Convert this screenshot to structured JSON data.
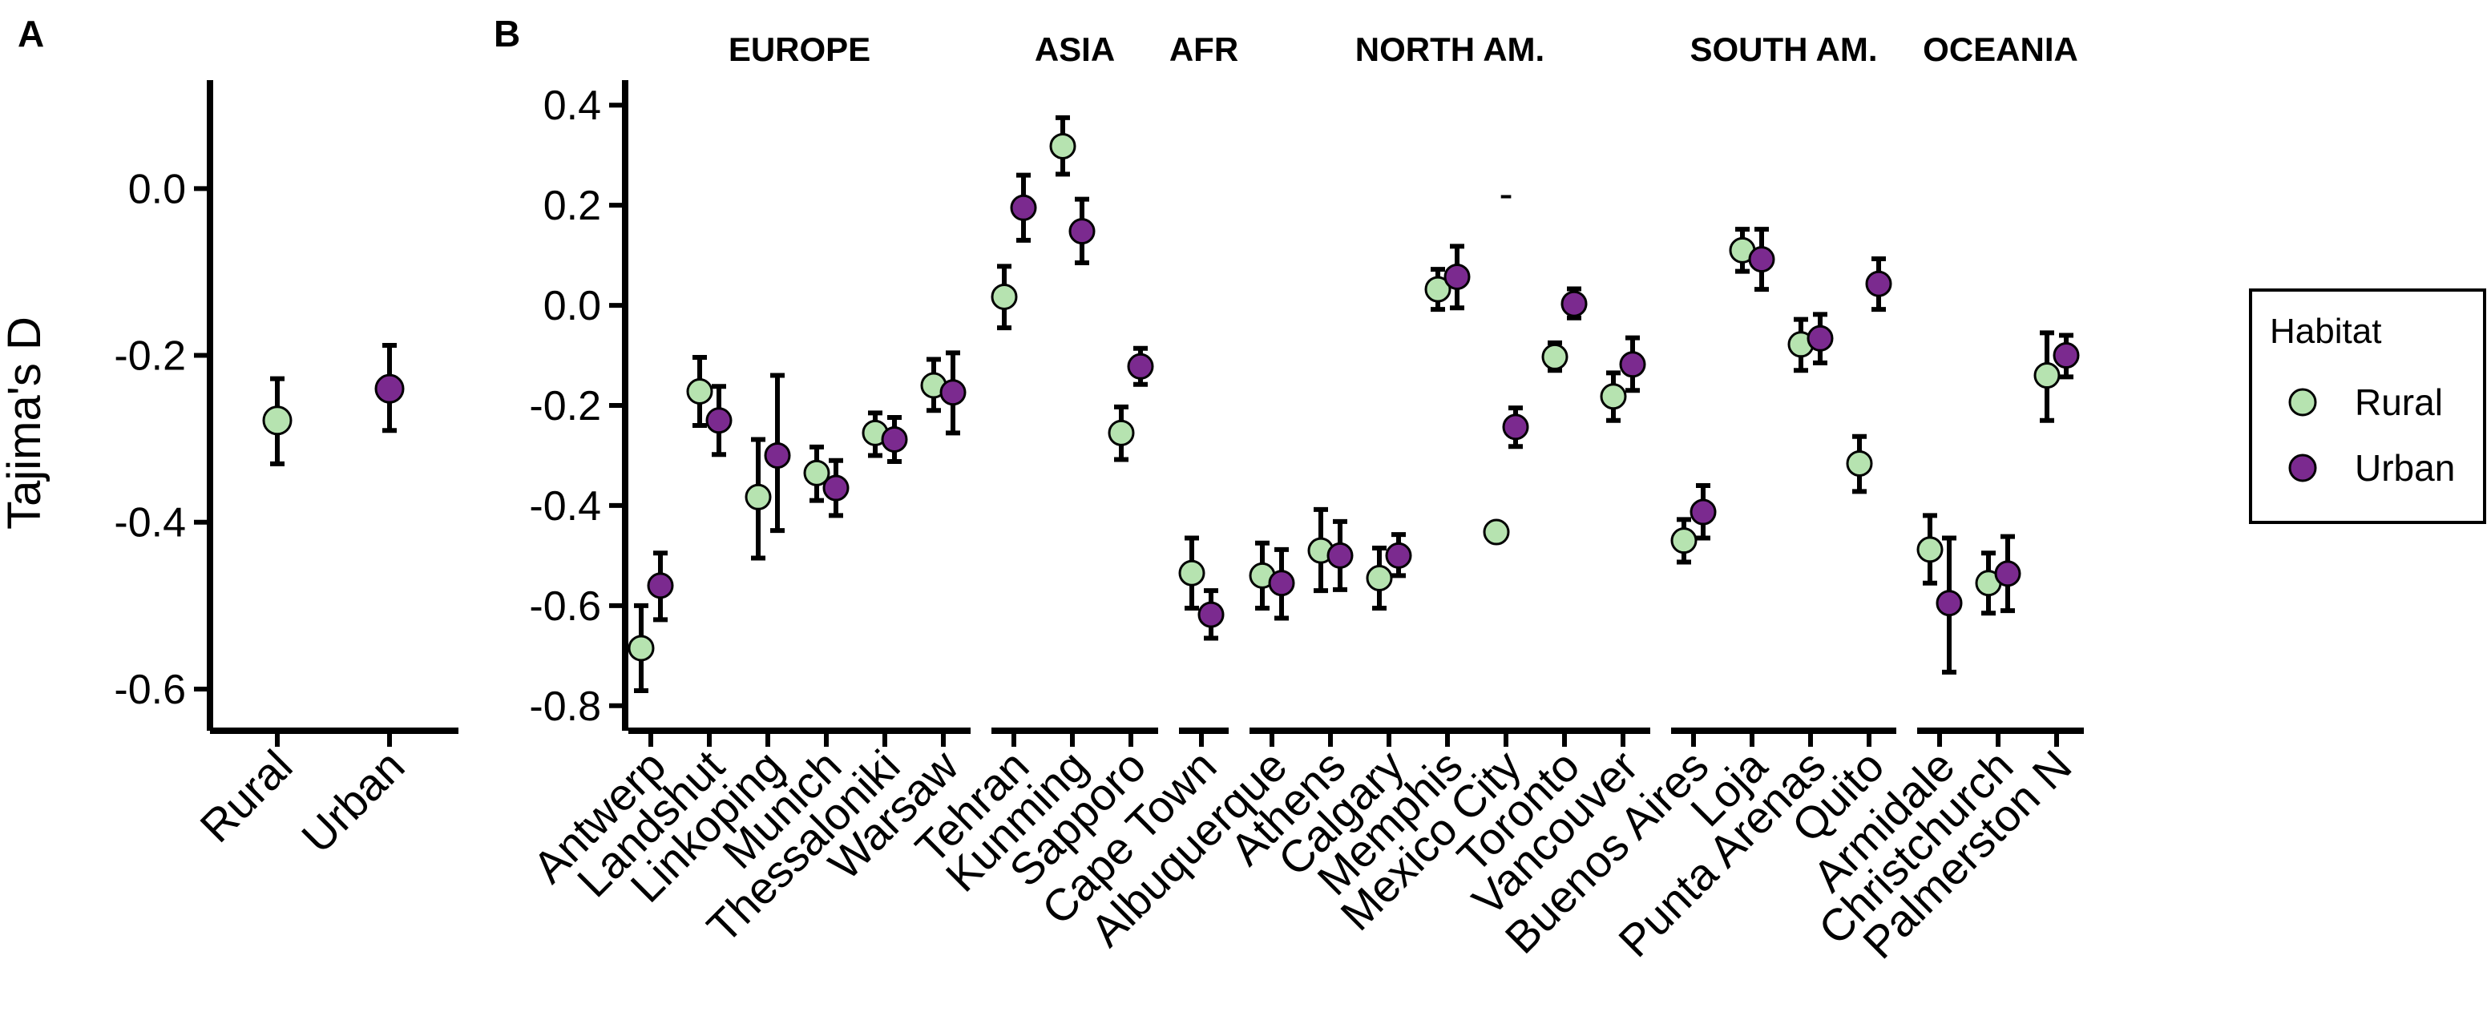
{
  "chart_data": [
    {
      "panel": "A",
      "type": "scatter",
      "ylabel": "Tajima's D",
      "ylim": [
        -0.65,
        0.13
      ],
      "yticks": [
        0.0,
        -0.2,
        -0.4,
        -0.6
      ],
      "yticklabels": [
        "0.0",
        "-0.2",
        "-0.4",
        "-0.6"
      ],
      "categories": [
        "Rural",
        "Urban"
      ],
      "points": [
        {
          "category": "Rural",
          "habitat": "Rural",
          "y": -0.278,
          "lo": -0.33,
          "hi": -0.228
        },
        {
          "category": "Urban",
          "habitat": "Urban",
          "y": -0.24,
          "lo": -0.29,
          "hi": -0.188
        }
      ]
    },
    {
      "panel": "B",
      "type": "scatter",
      "ylim": [
        -0.85,
        0.45
      ],
      "yticks": [
        0.4,
        0.2,
        0.0,
        -0.2,
        -0.4,
        -0.6,
        -0.8
      ],
      "yticklabels": [
        "0.4",
        "0.2",
        "0.0",
        "-0.2",
        "-0.4",
        "-0.6",
        "-0.8"
      ],
      "regions": [
        {
          "name": "EUROPE",
          "cities": [
            "Antwerp",
            "Landshut",
            "Linkoping",
            "Munich",
            "Thessaloniki",
            "Warsaw"
          ]
        },
        {
          "name": "ASIA",
          "cities": [
            "Tehran",
            "Kunming",
            "Sapporo"
          ]
        },
        {
          "name": "AFR",
          "cities": [
            "Cape Town"
          ]
        },
        {
          "name": "NORTH AM.",
          "cities": [
            "Albuquerque",
            "Athens",
            "Calgary",
            "Memphis",
            "Mexico City",
            "Toronto",
            "Vancouver"
          ]
        },
        {
          "name": "SOUTH AM.",
          "cities": [
            "Buenos Aires",
            "Loja",
            "Punta Arenas",
            "Quito"
          ]
        },
        {
          "name": "OCEANIA",
          "cities": [
            "Armidale",
            "Christchurch",
            "Palmerston N"
          ]
        }
      ],
      "series": [
        {
          "name": "Rural",
          "points": [
            {
              "city": "Antwerp",
              "y": -0.685,
              "lo": -0.77,
              "hi": -0.6
            },
            {
              "city": "Landshut",
              "y": -0.172,
              "lo": -0.24,
              "hi": -0.104
            },
            {
              "city": "Linkoping",
              "y": -0.383,
              "lo": -0.505,
              "hi": -0.268
            },
            {
              "city": "Munich",
              "y": -0.335,
              "lo": -0.39,
              "hi": -0.283
            },
            {
              "city": "Thessaloniki",
              "y": -0.255,
              "lo": -0.3,
              "hi": -0.215
            },
            {
              "city": "Warsaw",
              "y": -0.16,
              "lo": -0.21,
              "hi": -0.108
            },
            {
              "city": "Tehran",
              "y": 0.017,
              "lo": -0.045,
              "hi": 0.078
            },
            {
              "city": "Kunming",
              "y": 0.318,
              "lo": 0.262,
              "hi": 0.375
            },
            {
              "city": "Sapporo",
              "y": -0.255,
              "lo": -0.308,
              "hi": -0.203
            },
            {
              "city": "Cape Town",
              "y": -0.535,
              "lo": -0.605,
              "hi": -0.465
            },
            {
              "city": "Albuquerque",
              "y": -0.54,
              "lo": -0.605,
              "hi": -0.475
            },
            {
              "city": "Athens",
              "y": -0.49,
              "lo": -0.57,
              "hi": -0.408
            },
            {
              "city": "Calgary",
              "y": -0.545,
              "lo": -0.605,
              "hi": -0.485
            },
            {
              "city": "Memphis",
              "y": 0.032,
              "lo": -0.008,
              "hi": 0.072
            },
            {
              "city": "Mexico City",
              "y": -0.453,
              "lo": -0.453,
              "hi": -0.453
            },
            {
              "city": "Toronto",
              "y": -0.103,
              "lo": -0.13,
              "hi": -0.075
            },
            {
              "city": "Vancouver",
              "y": -0.182,
              "lo": -0.23,
              "hi": -0.135
            },
            {
              "city": "Buenos Aires",
              "y": -0.47,
              "lo": -0.513,
              "hi": -0.428
            },
            {
              "city": "Loja",
              "y": 0.11,
              "lo": 0.068,
              "hi": 0.152
            },
            {
              "city": "Punta Arenas",
              "y": -0.078,
              "lo": -0.13,
              "hi": -0.028
            },
            {
              "city": "Quito",
              "y": -0.316,
              "lo": -0.372,
              "hi": -0.262
            },
            {
              "city": "Armidale",
              "y": -0.488,
              "lo": -0.555,
              "hi": -0.42
            },
            {
              "city": "Christchurch",
              "y": -0.555,
              "lo": -0.615,
              "hi": -0.495
            },
            {
              "city": "Palmerston N",
              "y": -0.14,
              "lo": -0.23,
              "hi": -0.055
            }
          ]
        },
        {
          "name": "Urban",
          "points": [
            {
              "city": "Antwerp",
              "y": -0.56,
              "lo": -0.628,
              "hi": -0.495
            },
            {
              "city": "Landshut",
              "y": -0.23,
              "lo": -0.298,
              "hi": -0.162
            },
            {
              "city": "Linkoping",
              "y": -0.3,
              "lo": -0.45,
              "hi": -0.14
            },
            {
              "city": "Munich",
              "y": -0.365,
              "lo": -0.42,
              "hi": -0.31
            },
            {
              "city": "Thessaloniki",
              "y": -0.268,
              "lo": -0.312,
              "hi": -0.224
            },
            {
              "city": "Warsaw",
              "y": -0.174,
              "lo": -0.255,
              "hi": -0.095
            },
            {
              "city": "Tehran",
              "y": 0.195,
              "lo": 0.13,
              "hi": 0.26
            },
            {
              "city": "Kunming",
              "y": 0.148,
              "lo": 0.085,
              "hi": 0.212
            },
            {
              "city": "Sapporo",
              "y": -0.122,
              "lo": -0.158,
              "hi": -0.086
            },
            {
              "city": "Cape Town",
              "y": -0.618,
              "lo": -0.665,
              "hi": -0.57
            },
            {
              "city": "Albuquerque",
              "y": -0.555,
              "lo": -0.625,
              "hi": -0.488
            },
            {
              "city": "Athens",
              "y": -0.5,
              "lo": -0.568,
              "hi": -0.432
            },
            {
              "city": "Calgary",
              "y": -0.5,
              "lo": -0.54,
              "hi": -0.458
            },
            {
              "city": "Memphis",
              "y": 0.057,
              "lo": -0.005,
              "hi": 0.118
            },
            {
              "city": "Mexico City",
              "y": -0.243,
              "lo": -0.282,
              "hi": -0.205
            },
            {
              "city": "Toronto",
              "y": 0.003,
              "lo": -0.025,
              "hi": 0.033
            },
            {
              "city": "Vancouver",
              "y": -0.118,
              "lo": -0.17,
              "hi": -0.065
            },
            {
              "city": "Buenos Aires",
              "y": -0.413,
              "lo": -0.465,
              "hi": -0.36
            },
            {
              "city": "Loja",
              "y": 0.092,
              "lo": 0.032,
              "hi": 0.152
            },
            {
              "city": "Punta Arenas",
              "y": -0.066,
              "lo": -0.115,
              "hi": -0.018
            },
            {
              "city": "Quito",
              "y": 0.043,
              "lo": -0.008,
              "hi": 0.093
            },
            {
              "city": "Armidale",
              "y": -0.595,
              "lo": -0.733,
              "hi": -0.465
            },
            {
              "city": "Christchurch",
              "y": -0.536,
              "lo": -0.61,
              "hi": -0.462
            },
            {
              "city": "Palmerston N",
              "y": -0.1,
              "lo": -0.143,
              "hi": -0.06
            }
          ]
        }
      ],
      "annotations": [
        {
          "text": "-",
          "near": "Mexico City",
          "y": 0.22
        }
      ]
    }
  ],
  "panels": {
    "a_label": "A",
    "b_label": "B"
  },
  "legend": {
    "title": "Habitat",
    "items": [
      {
        "label": "Rural",
        "color": "#b6e3b0"
      },
      {
        "label": "Urban",
        "color": "#7b2a8f"
      }
    ],
    "placement": "right"
  },
  "colors": {
    "Rural": "#b6e3b0",
    "Urban": "#7b2a8f",
    "axis": "#000000"
  }
}
